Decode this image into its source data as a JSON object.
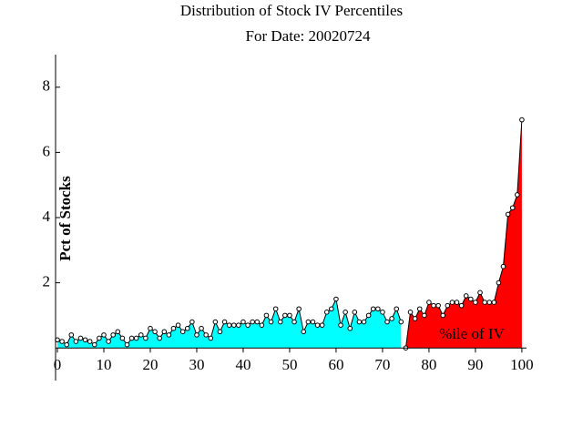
{
  "chart_data": {
    "type": "area",
    "title": "Distribution of Stock IV Percentiles",
    "subtitle": "For Date: 20020724",
    "x_label": "%ile of IV",
    "y_label": "Pct of Stocks",
    "xlim": [
      0,
      101
    ],
    "ylim": [
      -1,
      9
    ],
    "xticks": [
      0,
      10,
      20,
      30,
      40,
      50,
      60,
      70,
      80,
      90,
      100
    ],
    "yticks": [
      2,
      4,
      6,
      8
    ],
    "series": [
      {
        "color": "#00ffff",
        "x": [
          0,
          1,
          2,
          3,
          4,
          5,
          6,
          7,
          8,
          9,
          10,
          11,
          12,
          13,
          14,
          15,
          16,
          17,
          18,
          19,
          20,
          21,
          22,
          23,
          24,
          25,
          26,
          27,
          28,
          29,
          30,
          31,
          32,
          33,
          34,
          35,
          36,
          37,
          38,
          39,
          40,
          41,
          42,
          43,
          44,
          45,
          46,
          47,
          48,
          49,
          50,
          51,
          52,
          53,
          54,
          55,
          56,
          57,
          58,
          59,
          60,
          61,
          62,
          63,
          64,
          65,
          66,
          67,
          68,
          69,
          70,
          71,
          72,
          73,
          74
        ],
        "values": [
          0.25,
          0.2,
          0.1,
          0.4,
          0.2,
          0.3,
          0.25,
          0.2,
          0.1,
          0.3,
          0.4,
          0.2,
          0.4,
          0.5,
          0.3,
          0.1,
          0.3,
          0.3,
          0.4,
          0.3,
          0.6,
          0.5,
          0.3,
          0.5,
          0.4,
          0.6,
          0.7,
          0.5,
          0.6,
          0.8,
          0.4,
          0.6,
          0.4,
          0.3,
          0.8,
          0.5,
          0.8,
          0.7,
          0.7,
          0.7,
          0.8,
          0.7,
          0.8,
          0.8,
          0.7,
          1.0,
          0.8,
          1.2,
          0.8,
          1.0,
          1.0,
          0.8,
          1.2,
          0.5,
          0.8,
          0.8,
          0.7,
          0.7,
          1.1,
          1.2,
          1.5,
          0.7,
          1.1,
          0.6,
          1.1,
          0.8,
          0.8,
          1.0,
          1.2,
          1.2,
          1.1,
          0.8,
          0.9,
          1.2,
          0.8
        ]
      },
      {
        "color": "#ff0000",
        "x": [
          75,
          76,
          77,
          78,
          79,
          80,
          81,
          82,
          83,
          84,
          85,
          86,
          87,
          88,
          89,
          90,
          91,
          92,
          93,
          94,
          95,
          96,
          97,
          98,
          99,
          100
        ],
        "values": [
          0,
          1.1,
          0.9,
          1.2,
          1.0,
          1.4,
          1.3,
          1.3,
          1.0,
          1.3,
          1.4,
          1.4,
          1.3,
          1.6,
          1.5,
          1.4,
          1.7,
          1.4,
          1.4,
          1.4,
          2.0,
          2.5,
          4.1,
          4.3,
          4.7,
          7.0
        ]
      }
    ]
  }
}
